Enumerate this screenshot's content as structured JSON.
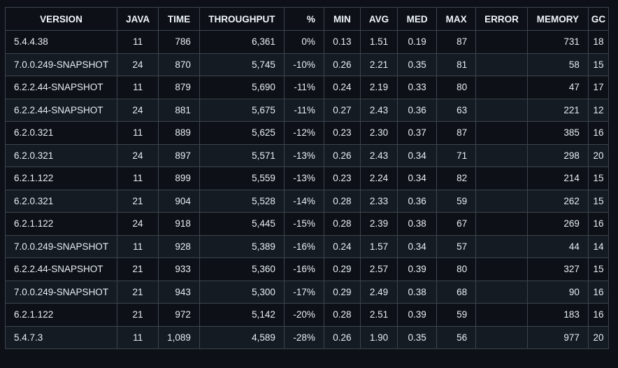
{
  "table": {
    "columns": [
      "VERSION",
      "JAVA",
      "TIME",
      "THROUGHPUT",
      "%",
      "MIN",
      "AVG",
      "MED",
      "MAX",
      "ERROR",
      "MEMORY",
      "GC"
    ],
    "rows": [
      [
        "5.4.4.38",
        "11",
        "786",
        "6,361",
        "0%",
        "0.13",
        "1.51",
        "0.19",
        "87",
        "",
        "731",
        "18"
      ],
      [
        "7.0.0.249-SNAPSHOT",
        "24",
        "870",
        "5,745",
        "-10%",
        "0.26",
        "2.21",
        "0.35",
        "81",
        "",
        "58",
        "15"
      ],
      [
        "6.2.2.44-SNAPSHOT",
        "11",
        "879",
        "5,690",
        "-11%",
        "0.24",
        "2.19",
        "0.33",
        "80",
        "",
        "47",
        "17"
      ],
      [
        "6.2.2.44-SNAPSHOT",
        "24",
        "881",
        "5,675",
        "-11%",
        "0.27",
        "2.43",
        "0.36",
        "63",
        "",
        "221",
        "12"
      ],
      [
        "6.2.0.321",
        "11",
        "889",
        "5,625",
        "-12%",
        "0.23",
        "2.30",
        "0.37",
        "87",
        "",
        "385",
        "16"
      ],
      [
        "6.2.0.321",
        "24",
        "897",
        "5,571",
        "-13%",
        "0.26",
        "2.43",
        "0.34",
        "71",
        "",
        "298",
        "20"
      ],
      [
        "6.2.1.122",
        "11",
        "899",
        "5,559",
        "-13%",
        "0.23",
        "2.24",
        "0.34",
        "82",
        "",
        "214",
        "15"
      ],
      [
        "6.2.0.321",
        "21",
        "904",
        "5,528",
        "-14%",
        "0.28",
        "2.33",
        "0.36",
        "59",
        "",
        "262",
        "15"
      ],
      [
        "6.2.1.122",
        "24",
        "918",
        "5,445",
        "-15%",
        "0.28",
        "2.39",
        "0.38",
        "67",
        "",
        "269",
        "16"
      ],
      [
        "7.0.0.249-SNAPSHOT",
        "11",
        "928",
        "5,389",
        "-16%",
        "0.24",
        "1.57",
        "0.34",
        "57",
        "",
        "44",
        "14"
      ],
      [
        "6.2.2.44-SNAPSHOT",
        "21",
        "933",
        "5,360",
        "-16%",
        "0.29",
        "2.57",
        "0.39",
        "80",
        "",
        "327",
        "15"
      ],
      [
        "7.0.0.249-SNAPSHOT",
        "21",
        "943",
        "5,300",
        "-17%",
        "0.29",
        "2.49",
        "0.38",
        "68",
        "",
        "90",
        "16"
      ],
      [
        "6.2.1.122",
        "21",
        "972",
        "5,142",
        "-20%",
        "0.28",
        "2.51",
        "0.39",
        "59",
        "",
        "183",
        "16"
      ],
      [
        "5.4.7.3",
        "11",
        "1,089",
        "4,589",
        "-28%",
        "0.26",
        "1.90",
        "0.35",
        "56",
        "",
        "977",
        "20"
      ]
    ]
  },
  "colors": {
    "background": "#0d1117",
    "row_alt": "#151b23",
    "border": "#3d444d",
    "text": "#e6edf3"
  }
}
